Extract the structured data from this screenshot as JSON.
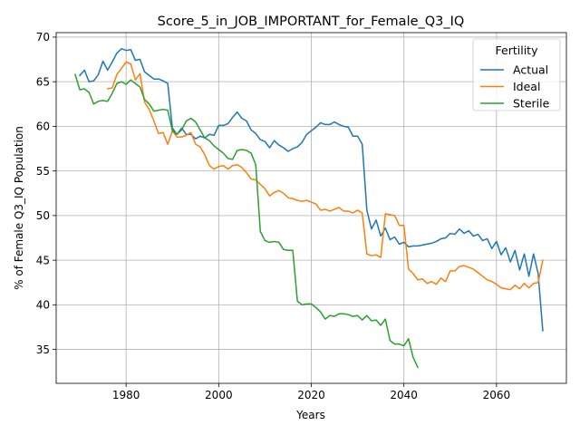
{
  "chart_data": {
    "type": "line",
    "title": "Score_5_in_JOB_IMPORTANT_for_Female_Q3_IQ",
    "xlabel": "Years",
    "ylabel": "% of Female Q3_IQ Population",
    "xlim": [
      1964.9,
      2075.1
    ],
    "ylim": [
      31.2,
      70.5
    ],
    "xticks": [
      1980,
      2000,
      2020,
      2040,
      2060
    ],
    "yticks": [
      35,
      40,
      45,
      50,
      55,
      60,
      65,
      70
    ],
    "grid": true,
    "legend": {
      "title": "Fertility",
      "placement": "top-right"
    },
    "series": [
      {
        "name": "Actual",
        "color": "#1f77b4",
        "x": [
          1970,
          1971,
          1972,
          1973,
          1974,
          1975,
          1976,
          1977,
          1978,
          1979,
          1980,
          1981,
          1982,
          1983,
          1984,
          1985,
          1986,
          1987,
          1988,
          1989,
          1990,
          1991,
          1992,
          1993,
          1994,
          1995,
          1996,
          1997,
          1998,
          1999,
          2000,
          2001,
          2002,
          2003,
          2004,
          2005,
          2006,
          2007,
          2008,
          2009,
          2010,
          2011,
          2012,
          2013,
          2014,
          2015,
          2016,
          2017,
          2018,
          2019,
          2020,
          2021,
          2022,
          2023,
          2024,
          2025,
          2026,
          2027,
          2028,
          2029,
          2030,
          2031,
          2032,
          2033,
          2034,
          2035,
          2036,
          2037,
          2038,
          2039,
          2040,
          2041,
          2042,
          2043,
          2044,
          2045,
          2046,
          2047,
          2048,
          2049,
          2050,
          2051,
          2052,
          2053,
          2054,
          2055,
          2056,
          2057,
          2058,
          2059,
          2060,
          2061,
          2062,
          2063,
          2064,
          2065,
          2066,
          2067,
          2068,
          2069,
          2070
        ],
        "y": [
          65.7,
          66.3,
          65.0,
          65.1,
          65.8,
          67.3,
          66.3,
          67.2,
          68.2,
          68.7,
          68.5,
          68.6,
          67.4,
          67.5,
          66.1,
          65.7,
          65.3,
          65.3,
          65.1,
          64.8,
          59.8,
          59.1,
          59.8,
          59.1,
          59.1,
          58.6,
          58.9,
          58.7,
          59.1,
          59.0,
          60.1,
          60.1,
          60.3,
          61.0,
          61.6,
          60.9,
          60.6,
          59.6,
          59.2,
          58.5,
          58.3,
          57.6,
          58.4,
          57.9,
          57.6,
          57.2,
          57.5,
          57.7,
          58.2,
          59.1,
          59.5,
          59.9,
          60.4,
          60.2,
          60.2,
          60.5,
          60.2,
          60.0,
          59.9,
          58.9,
          58.9,
          58.0,
          50.6,
          48.5,
          49.5,
          47.7,
          48.6,
          47.3,
          47.6,
          46.8,
          47.0,
          46.5,
          46.6,
          46.6,
          46.7,
          46.8,
          46.9,
          47.1,
          47.4,
          47.5,
          48.0,
          47.9,
          48.5,
          48.0,
          48.3,
          47.7,
          47.9,
          47.2,
          47.4,
          46.3,
          47.1,
          45.6,
          46.4,
          44.8,
          46.1,
          43.9,
          45.7,
          43.2,
          45.7,
          43.5,
          37.1
        ]
      },
      {
        "name": "Ideal",
        "color": "#ff7f0e",
        "x": [
          1976,
          1977,
          1978,
          1979,
          1980,
          1981,
          1982,
          1983,
          1984,
          1985,
          1986,
          1987,
          1988,
          1989,
          1990,
          1991,
          1992,
          1993,
          1994,
          1995,
          1996,
          1997,
          1998,
          1999,
          2000,
          2001,
          2002,
          2003,
          2004,
          2005,
          2006,
          2007,
          2008,
          2009,
          2010,
          2011,
          2012,
          2013,
          2014,
          2015,
          2016,
          2017,
          2018,
          2019,
          2020,
          2021,
          2022,
          2023,
          2024,
          2025,
          2026,
          2027,
          2028,
          2029,
          2030,
          2031,
          2032,
          2033,
          2034,
          2035,
          2036,
          2037,
          2038,
          2039,
          2040,
          2041,
          2042,
          2043,
          2044,
          2045,
          2046,
          2047,
          2048,
          2049,
          2050,
          2051,
          2052,
          2053,
          2054,
          2055,
          2056,
          2057,
          2058,
          2059,
          2060,
          2061,
          2062,
          2063,
          2064,
          2065,
          2066,
          2067,
          2068,
          2069,
          2070
        ],
        "y": [
          64.2,
          64.3,
          65.8,
          66.5,
          67.2,
          67.0,
          65.2,
          65.9,
          62.7,
          61.9,
          60.6,
          59.2,
          59.3,
          58.0,
          59.5,
          58.8,
          58.8,
          59.0,
          59.3,
          58.0,
          57.7,
          56.8,
          55.6,
          55.2,
          55.5,
          55.6,
          55.2,
          55.6,
          55.7,
          55.4,
          54.8,
          54.1,
          54.0,
          53.5,
          53.0,
          52.2,
          52.6,
          52.8,
          52.5,
          52.0,
          51.9,
          51.7,
          51.6,
          51.7,
          51.5,
          51.3,
          50.6,
          50.7,
          50.5,
          50.7,
          50.9,
          50.5,
          50.5,
          50.3,
          50.6,
          50.3,
          45.7,
          45.5,
          45.6,
          45.3,
          50.2,
          50.1,
          50.0,
          48.9,
          48.9,
          44.0,
          43.5,
          42.8,
          42.9,
          42.4,
          42.6,
          42.3,
          43.0,
          42.6,
          43.8,
          43.8,
          44.3,
          44.4,
          44.2,
          44.0,
          43.6,
          43.2,
          42.8,
          42.6,
          42.3,
          41.9,
          41.8,
          41.7,
          42.2,
          41.8,
          42.4,
          41.9,
          42.4,
          42.5,
          45.0
        ]
      },
      {
        "name": "Sterile",
        "color": "#2ca02c",
        "x": [
          1969,
          1970,
          1971,
          1972,
          1973,
          1974,
          1975,
          1976,
          1977,
          1978,
          1979,
          1980,
          1981,
          1982,
          1983,
          1984,
          1985,
          1986,
          1987,
          1988,
          1989,
          1990,
          1991,
          1992,
          1993,
          1994,
          1995,
          1996,
          1997,
          1998,
          1999,
          2000,
          2001,
          2002,
          2003,
          2004,
          2005,
          2006,
          2007,
          2008,
          2009,
          2010,
          2011,
          2012,
          2013,
          2014,
          2015,
          2016,
          2017,
          2018,
          2019,
          2020,
          2021,
          2022,
          2023,
          2024,
          2025,
          2026,
          2027,
          2028,
          2029,
          2030,
          2031,
          2032,
          2033,
          2034,
          2035,
          2036,
          2037,
          2038,
          2039,
          2040,
          2041,
          2042,
          2043
        ],
        "y": [
          65.8,
          64.1,
          64.2,
          63.8,
          62.5,
          62.8,
          62.9,
          62.8,
          63.7,
          64.8,
          65.0,
          64.7,
          65.2,
          64.8,
          64.4,
          63.0,
          62.5,
          61.7,
          61.8,
          61.9,
          61.8,
          59.5,
          59.1,
          59.6,
          60.6,
          60.9,
          60.5,
          59.6,
          58.7,
          58.4,
          57.8,
          57.4,
          57.0,
          56.4,
          56.3,
          57.3,
          57.4,
          57.3,
          57.0,
          55.7,
          48.2,
          47.2,
          47.0,
          47.1,
          47.0,
          46.2,
          46.1,
          46.1,
          40.4,
          40.0,
          40.1,
          40.1,
          39.7,
          39.2,
          38.4,
          38.8,
          38.7,
          39.0,
          39.0,
          38.9,
          38.7,
          38.8,
          38.3,
          38.8,
          38.2,
          38.3,
          37.7,
          38.4,
          36.0,
          35.6,
          35.6,
          35.4,
          36.2,
          34.1,
          33.0
        ]
      }
    ]
  }
}
